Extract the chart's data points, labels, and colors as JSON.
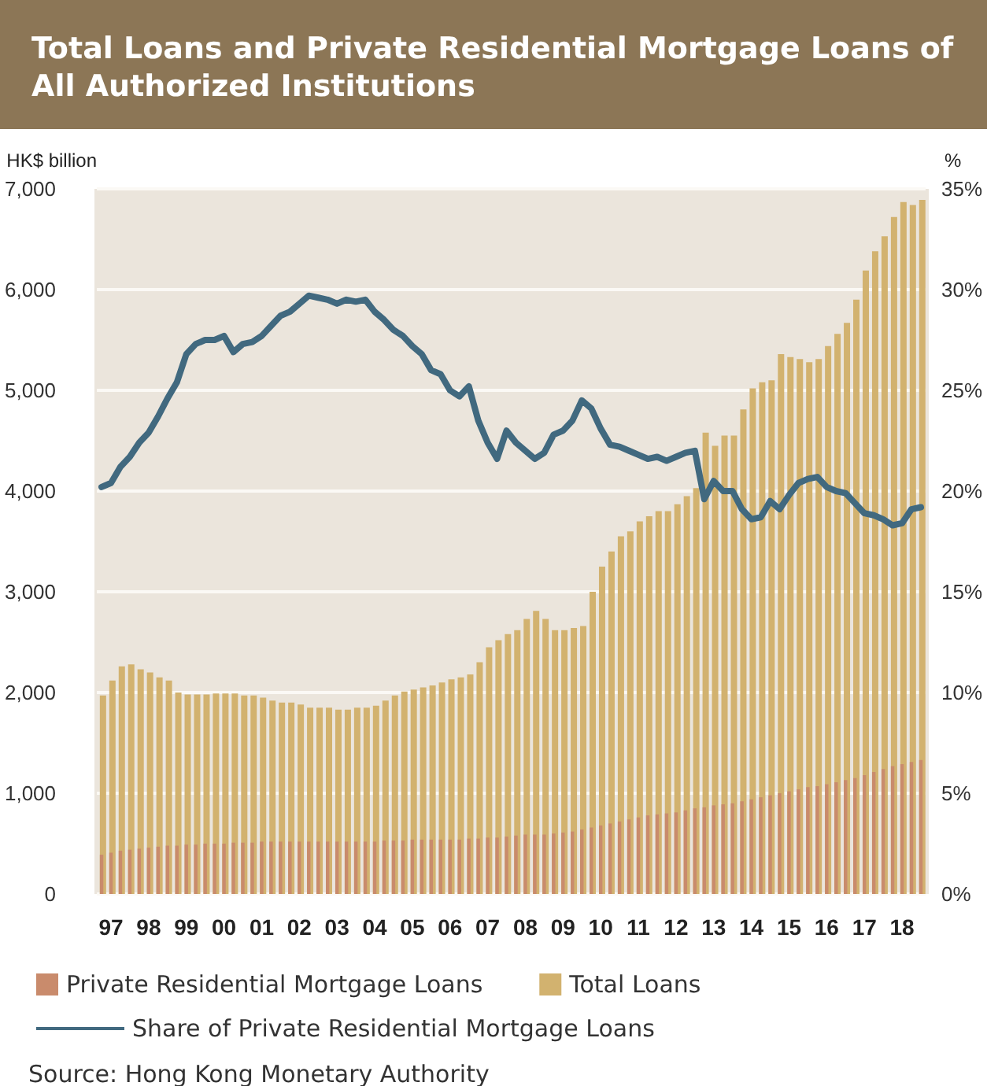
{
  "chart_data": {
    "type": "bar",
    "title": "Total Loans and Private Residential Mortgage Loans of All Authorized Institutions",
    "ylabel": "HK$ billion",
    "y2label": "%",
    "categories": [
      null,
      "97",
      null,
      null,
      null,
      "98",
      null,
      null,
      null,
      "99",
      null,
      null,
      null,
      "00",
      null,
      null,
      null,
      "01",
      null,
      null,
      null,
      "02",
      null,
      null,
      null,
      "03",
      null,
      null,
      null,
      "04",
      null,
      null,
      null,
      "05",
      null,
      null,
      null,
      "06",
      null,
      null,
      null,
      "07",
      null,
      null,
      null,
      "08",
      null,
      null,
      null,
      "09",
      null,
      null,
      null,
      "10",
      null,
      null,
      null,
      "11",
      null,
      null,
      null,
      "12",
      null,
      null,
      null,
      "13",
      null,
      null,
      null,
      "14",
      null,
      null,
      null,
      "15",
      null,
      null,
      null,
      "16",
      null,
      null,
      null,
      "17",
      null,
      null,
      null,
      "18",
      null,
      null
    ],
    "series": [
      {
        "name": "Total Loans",
        "color": "#d2b26f",
        "values": [
          1970,
          2120,
          2260,
          2280,
          2230,
          2200,
          2150,
          2120,
          2000,
          1980,
          1980,
          1980,
          1990,
          1990,
          1990,
          1970,
          1970,
          1950,
          1920,
          1900,
          1900,
          1880,
          1850,
          1850,
          1850,
          1830,
          1830,
          1850,
          1850,
          1870,
          1920,
          1970,
          2010,
          2030,
          2050,
          2070,
          2100,
          2130,
          2150,
          2180,
          2300,
          2450,
          2520,
          2580,
          2620,
          2730,
          2810,
          2730,
          2620,
          2620,
          2640,
          2660,
          3000,
          3250,
          3400,
          3550,
          3600,
          3700,
          3750,
          3800,
          3800,
          3870,
          3950,
          4030,
          4580,
          4450,
          4550,
          4550,
          4810,
          5020,
          5080,
          5100,
          5360,
          5330,
          5310,
          5280,
          5310,
          5440,
          5560,
          5670,
          5900,
          6190,
          6380,
          6530,
          6720,
          6870,
          6840,
          6890
        ]
      },
      {
        "name": "Private Residential Mortgage Loans",
        "color": "#c98b6c",
        "values": [
          390,
          410,
          430,
          440,
          450,
          460,
          470,
          480,
          480,
          490,
          490,
          500,
          500,
          500,
          510,
          510,
          510,
          520,
          520,
          520,
          520,
          520,
          520,
          520,
          520,
          520,
          520,
          520,
          520,
          520,
          530,
          530,
          530,
          540,
          540,
          540,
          540,
          540,
          540,
          550,
          550,
          560,
          560,
          570,
          580,
          590,
          590,
          590,
          600,
          610,
          620,
          640,
          660,
          680,
          700,
          720,
          740,
          760,
          780,
          790,
          800,
          810,
          830,
          850,
          860,
          880,
          890,
          900,
          920,
          940,
          960,
          980,
          1000,
          1020,
          1040,
          1060,
          1070,
          1090,
          1110,
          1130,
          1150,
          1180,
          1210,
          1240,
          1270,
          1290,
          1310,
          1330
        ]
      },
      {
        "name": "Share of Private Residential Mortgage Loans",
        "type": "line",
        "axis": "y2",
        "color": "#41697f",
        "values": [
          20.2,
          20.4,
          21.2,
          21.7,
          22.4,
          22.9,
          23.7,
          24.6,
          25.4,
          26.8,
          27.3,
          27.5,
          27.5,
          27.7,
          26.9,
          27.3,
          27.4,
          27.7,
          28.2,
          28.7,
          28.9,
          29.3,
          29.7,
          29.6,
          29.5,
          29.3,
          29.5,
          29.4,
          29.5,
          28.9,
          28.5,
          28.0,
          27.7,
          27.2,
          26.8,
          26.0,
          25.8,
          25.0,
          24.7,
          25.2,
          23.5,
          22.4,
          21.6,
          23.0,
          22.4,
          22.0,
          21.6,
          21.9,
          22.8,
          23.0,
          23.5,
          24.5,
          24.1,
          23.1,
          22.3,
          22.2,
          22.0,
          21.8,
          21.6,
          21.7,
          21.5,
          21.7,
          21.9,
          22.0,
          19.6,
          20.5,
          20.0,
          20.0,
          19.1,
          18.6,
          18.7,
          19.5,
          19.1,
          19.8,
          20.4,
          20.6,
          20.7,
          20.2,
          20.0,
          19.9,
          19.4,
          18.9,
          18.8,
          18.6,
          18.3,
          18.4,
          19.1,
          19.2
        ]
      }
    ],
    "ylim": [
      0,
      7000
    ],
    "yticks": [
      0,
      {
        "value": 1000,
        "label": "1,000"
      },
      {
        "value": 2000,
        "label": "2,000"
      },
      {
        "value": 3000,
        "label": "3,000"
      },
      {
        "value": 4000,
        "label": "4,000"
      },
      {
        "value": 5000,
        "label": "5,000"
      },
      {
        "value": 6000,
        "label": "6,000"
      },
      {
        "value": 7000,
        "label": "7,000"
      }
    ],
    "y2lim": [
      0,
      35
    ],
    "y2ticks": [
      {
        "value": 0,
        "label": "0%"
      },
      {
        "value": 5,
        "label": "5%"
      },
      {
        "value": 10,
        "label": "10%"
      },
      {
        "value": 15,
        "label": "15%"
      },
      {
        "value": 20,
        "label": "20%"
      },
      {
        "value": 25,
        "label": "25%"
      },
      {
        "value": 30,
        "label": "30%"
      },
      {
        "value": 35,
        "label": "35%"
      }
    ],
    "grid": "y",
    "legend": "bottom",
    "annotations": [
      "Source: Hong Kong Monetary Authority"
    ]
  }
}
